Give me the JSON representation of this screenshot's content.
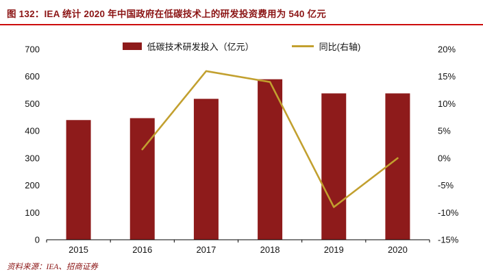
{
  "title": "图 132：IEA 统计 2020 年中国政府在低碳技术上的研发投资费用为 540 亿元",
  "source": "资料来源：IEA、招商证券",
  "colors": {
    "bar": "#8E1B1B",
    "line": "#C2A02F",
    "title": "#8B1414",
    "underline": "#CC0A0A",
    "axis": "#000000"
  },
  "chart_data": {
    "type": "bar",
    "categories": [
      "2015",
      "2016",
      "2017",
      "2018",
      "2019",
      "2020"
    ],
    "series": [
      {
        "name": "低碳技术研发投入（亿元）",
        "type": "bar",
        "axis": "left",
        "values": [
          440,
          447,
          518,
          590,
          538,
          538
        ]
      },
      {
        "name": "同比(右轴)",
        "type": "line",
        "axis": "right",
        "values": [
          null,
          1.6,
          16,
          14,
          -9,
          0
        ]
      }
    ],
    "left_axis": {
      "min": 0,
      "max": 700,
      "step": 100,
      "ticks": [
        "0",
        "100",
        "200",
        "300",
        "400",
        "500",
        "600",
        "700"
      ]
    },
    "right_axis": {
      "min": -15,
      "max": 20,
      "step": 5,
      "ticks": [
        "-15%",
        "-10%",
        "-5%",
        "0%",
        "5%",
        "10%",
        "15%",
        "20%"
      ]
    },
    "legend_position": "top",
    "grid": false
  }
}
